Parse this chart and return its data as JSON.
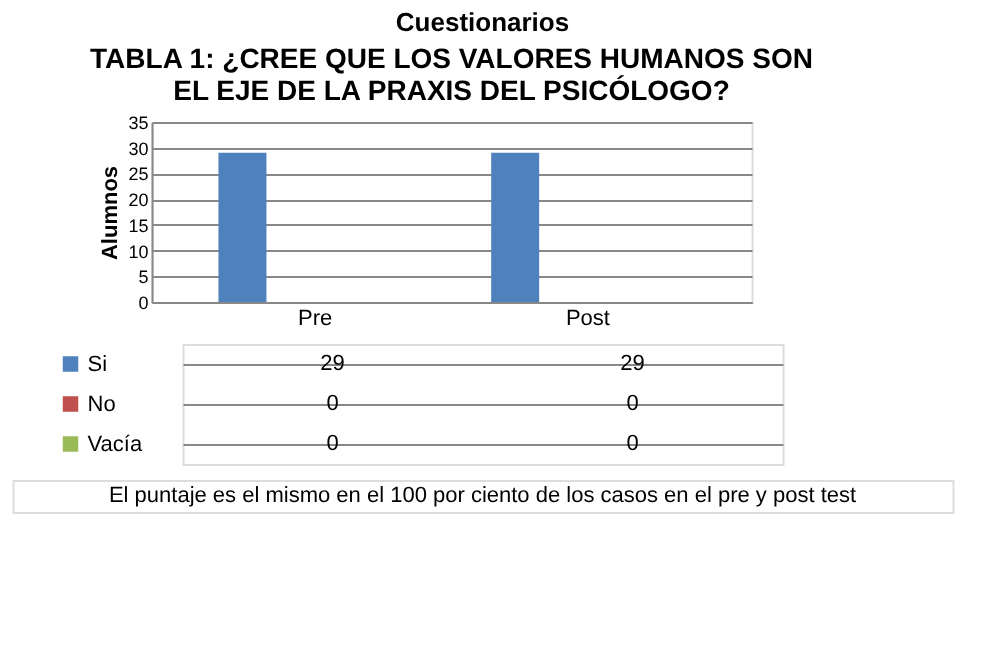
{
  "chart_data": {
    "type": "bar",
    "title": "Cuestionarios",
    "subtitle": "TABLA 1: ¿CREE QUE LOS VALORES HUMANOS SON EL EJE DE LA PRAXIS DEL PSICÓLOGO?",
    "ylabel": "Alumnos",
    "categories": [
      "Pre",
      "Post"
    ],
    "series": [
      {
        "name": "Si",
        "color": "#4f81bd",
        "values": [
          29,
          29
        ]
      },
      {
        "name": "No",
        "color": "#c0504d",
        "values": [
          0,
          0
        ]
      },
      {
        "name": "Vacía",
        "color": "#9bbb59",
        "values": [
          0,
          0
        ]
      }
    ],
    "ylim": [
      0,
      35
    ],
    "yticks": [
      0,
      5,
      10,
      15,
      20,
      25,
      30,
      35
    ],
    "grid": "y",
    "legend": "bottom",
    "data_labels": true,
    "annotations": [
      "El puntaje es el mismo en el 100 por  ciento de los casos en el pre y post test"
    ]
  }
}
